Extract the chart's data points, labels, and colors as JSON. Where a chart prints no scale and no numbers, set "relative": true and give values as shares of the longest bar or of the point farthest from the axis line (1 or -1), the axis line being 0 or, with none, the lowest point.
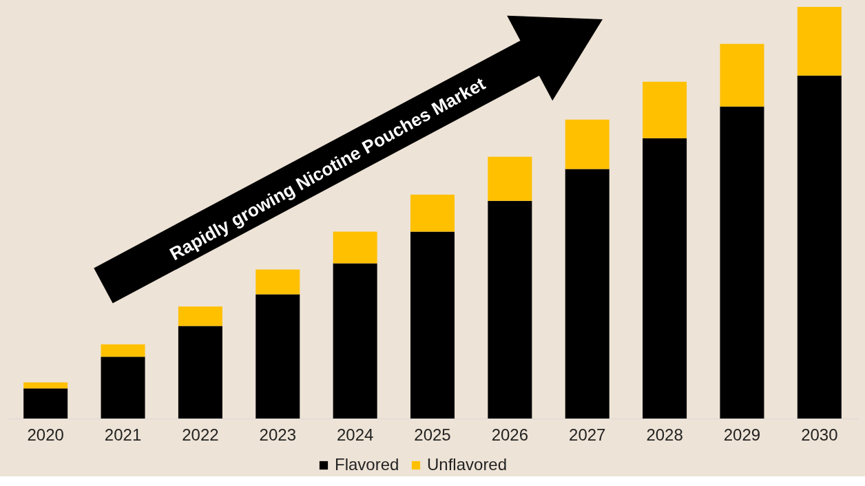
{
  "chart_data": {
    "type": "bar",
    "stacked": true,
    "relative": true,
    "legend": "bottom",
    "grid": false,
    "categories": [
      "2020",
      "2021",
      "2022",
      "2023",
      "2024",
      "2025",
      "2026",
      "2027",
      "2028",
      "2029",
      "2030"
    ],
    "series": [
      {
        "name": "Flavored",
        "color": "#000000",
        "values": [
          0.073,
          0.15,
          0.225,
          0.302,
          0.377,
          0.454,
          0.529,
          0.606,
          0.681,
          0.758,
          0.833
        ]
      },
      {
        "name": "Unflavored",
        "color": "#ffc000",
        "values": [
          0.015,
          0.03,
          0.047,
          0.06,
          0.077,
          0.09,
          0.107,
          0.12,
          0.137,
          0.152,
          0.167
        ]
      }
    ],
    "annotations": [
      "Rapidly growing Nicotine Pouches Market"
    ]
  }
}
